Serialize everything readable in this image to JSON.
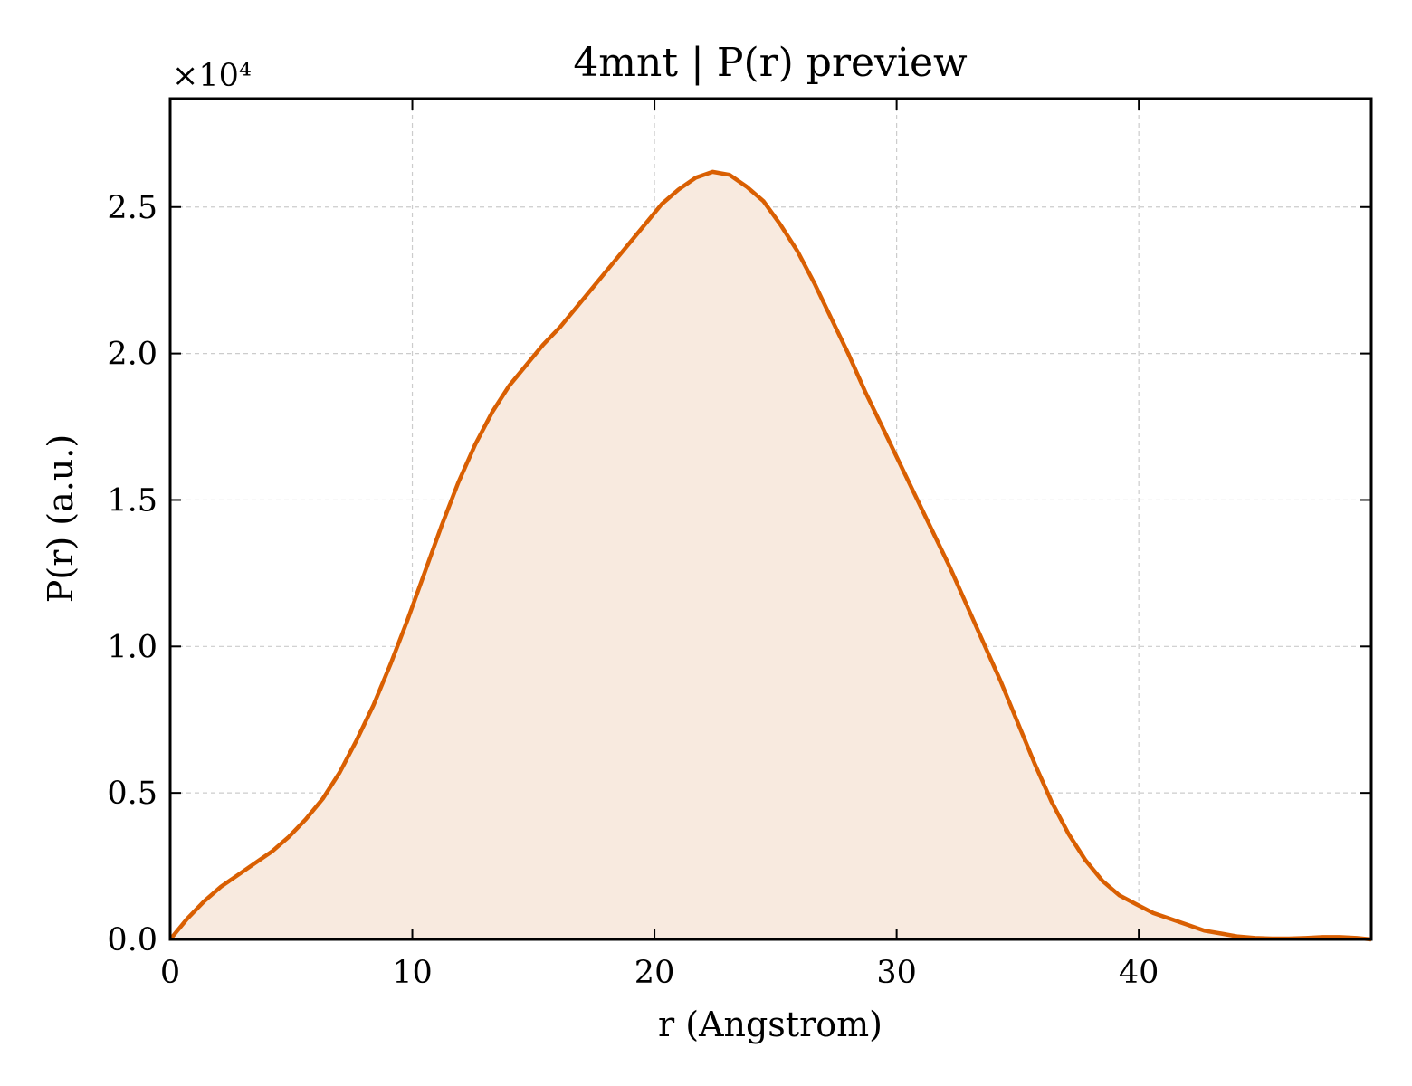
{
  "chart_data": {
    "type": "area",
    "title": "4mnt | P(r) preview",
    "xlabel": "r (Angstrom)",
    "ylabel": "P(r) (a.u.)",
    "y_scale_label": "×10⁴",
    "xlim": [
      0,
      49.6
    ],
    "ylim": [
      0,
      2.87
    ],
    "x_ticks": [
      0,
      10,
      20,
      30,
      40
    ],
    "x_tick_labels": [
      "0",
      "10",
      "20",
      "30",
      "40"
    ],
    "y_ticks": [
      0,
      0.5,
      1.0,
      1.5,
      2.0,
      2.5
    ],
    "y_tick_labels": [
      "0.0",
      "0.5",
      "1.0",
      "1.5",
      "2.0",
      "2.5"
    ],
    "grid": true,
    "line_color": "#d95f02",
    "fill_color": "#f8eadf",
    "series": [
      {
        "x": [
          0,
          0.7,
          1.4,
          2.1,
          2.8,
          3.5,
          4.2,
          4.9,
          5.6,
          6.3,
          7.0,
          7.7,
          8.4,
          9.1,
          9.8,
          10.5,
          11.2,
          11.9,
          12.6,
          13.3,
          14.0,
          14.7,
          15.4,
          16.1,
          16.8,
          17.5,
          18.2,
          18.9,
          19.6,
          20.3,
          21.0,
          21.7,
          22.4,
          23.1,
          23.8,
          24.5,
          25.2,
          25.9,
          26.6,
          27.3,
          28.0,
          28.7,
          29.4,
          30.1,
          30.8,
          31.5,
          32.2,
          32.9,
          33.6,
          34.3,
          35.0,
          35.7,
          36.4,
          37.1,
          37.8,
          38.5,
          39.2,
          39.9,
          40.6,
          41.3,
          42.0,
          42.7,
          43.4,
          44.1,
          44.8,
          45.5,
          46.2,
          46.9,
          47.6,
          48.3,
          49.0,
          49.6
        ],
        "y": [
          0,
          0.07,
          0.13,
          0.18,
          0.22,
          0.26,
          0.3,
          0.35,
          0.41,
          0.48,
          0.57,
          0.68,
          0.8,
          0.94,
          1.09,
          1.25,
          1.41,
          1.56,
          1.69,
          1.8,
          1.89,
          1.96,
          2.03,
          2.09,
          2.16,
          2.23,
          2.3,
          2.37,
          2.44,
          2.51,
          2.56,
          2.6,
          2.62,
          2.61,
          2.57,
          2.52,
          2.44,
          2.35,
          2.24,
          2.12,
          2.0,
          1.87,
          1.75,
          1.63,
          1.51,
          1.39,
          1.27,
          1.14,
          1.01,
          0.88,
          0.74,
          0.6,
          0.47,
          0.36,
          0.27,
          0.2,
          0.15,
          0.12,
          0.09,
          0.07,
          0.05,
          0.03,
          0.02,
          0.01,
          0.005,
          0.003,
          0.003,
          0.005,
          0.008,
          0.008,
          0.005,
          0.0
        ]
      }
    ]
  }
}
